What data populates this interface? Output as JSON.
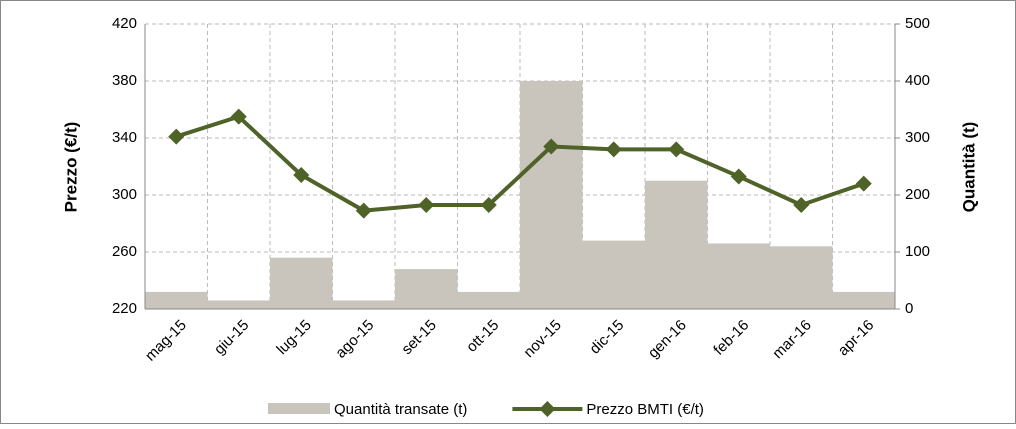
{
  "chart_data": {
    "type": "combo",
    "y_label": "Prezzo (€/t)",
    "y2_label": "Quantità (t)",
    "categories": [
      "mag-15",
      "giu-15",
      "lug-15",
      "ago-15",
      "set-15",
      "ott-15",
      "nov-15",
      "dic-15",
      "gen-16",
      "feb-16",
      "mar-16",
      "apr-16"
    ],
    "series": [
      {
        "name": "Quantità transate (t)",
        "type": "bar",
        "axis": "y2",
        "color": "#c9c5bd",
        "values": [
          30,
          15,
          90,
          15,
          70,
          30,
          400,
          120,
          225,
          115,
          110,
          30
        ]
      },
      {
        "name": "Prezzo BMTI (€/t)",
        "type": "line",
        "axis": "y",
        "color": "#4f6228",
        "values": [
          341,
          355,
          314,
          289,
          293,
          293,
          334,
          332,
          332,
          313,
          293,
          308
        ]
      }
    ],
    "ylim": [
      220,
      420
    ],
    "yticks": [
      220,
      260,
      300,
      340,
      380,
      420
    ],
    "y2lim": [
      0,
      500
    ],
    "y2ticks": [
      0,
      100,
      200,
      300,
      400,
      500
    ],
    "grid": true
  }
}
